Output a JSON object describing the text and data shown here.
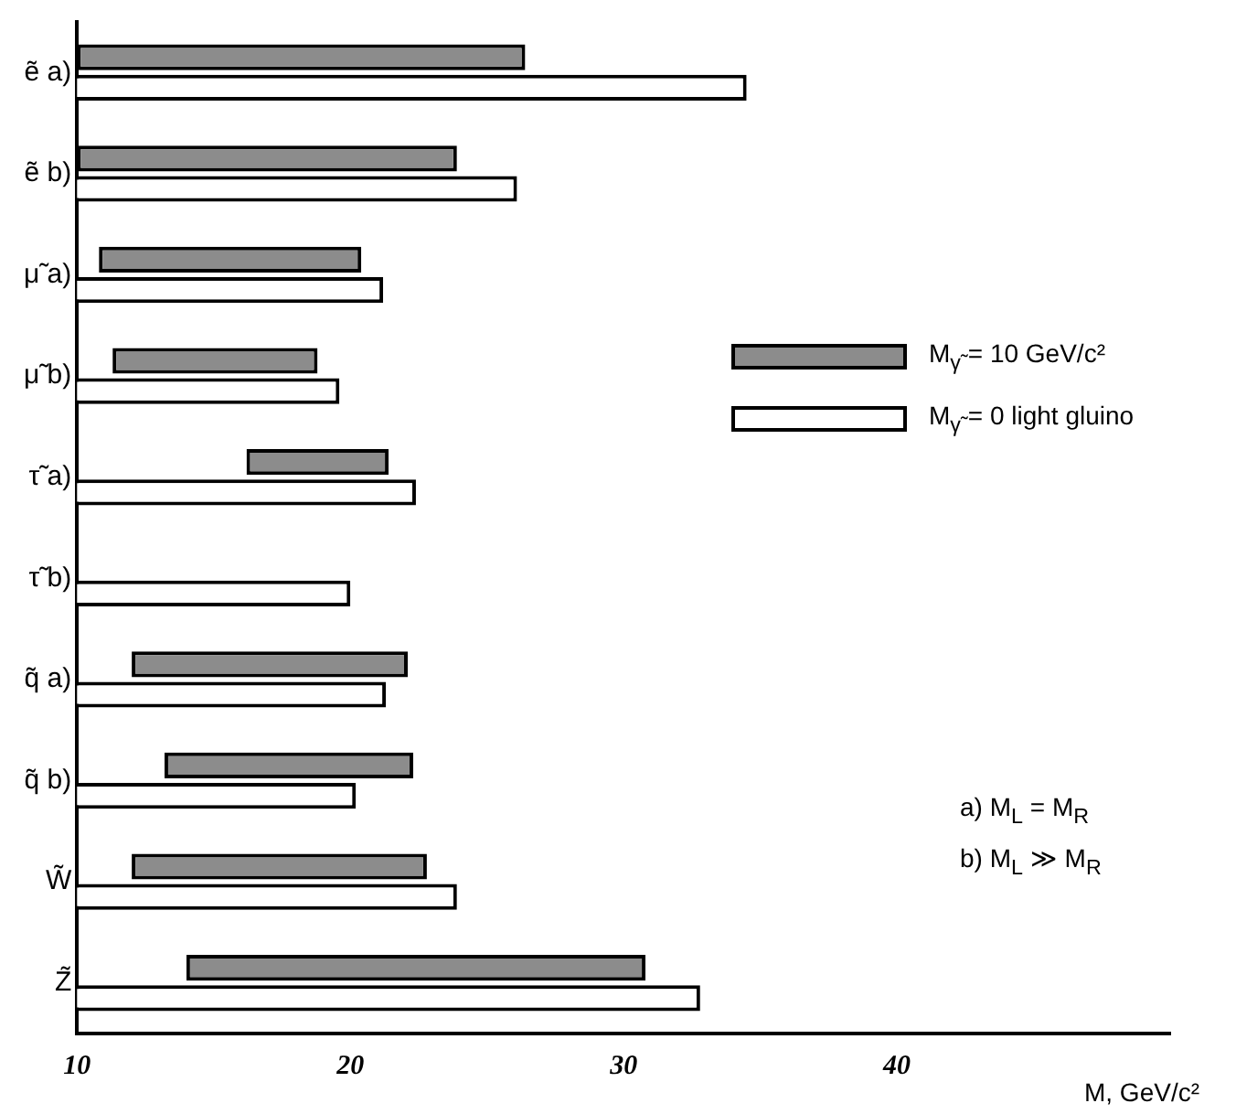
{
  "chart_data": {
    "type": "bar",
    "orientation": "horizontal",
    "xlabel": "M, GeV/c²",
    "categories": [
      "ẽ a)",
      "ẽ b)",
      "μ̃ a)",
      "μ̃ b)",
      "τ̃ a)",
      "τ̃ b)",
      "q̃ a)",
      "q̃ b)",
      "W̃",
      "Z̃"
    ],
    "series": [
      {
        "name": "M$_{γ̃}$ = 10 GeV/c²",
        "color": "#8c8c8c",
        "base": [
          10,
          10,
          10.8,
          11.3,
          16.2,
          null,
          12.0,
          13.2,
          12.0,
          14.0
        ],
        "values": [
          16.4,
          13.9,
          9.6,
          7.5,
          5.2,
          null,
          10.1,
          9.1,
          10.8,
          16.8
        ]
      },
      {
        "name": "M$_{γ̃}$ = 0 light gluino",
        "color": "#ffffff",
        "values": [
          34.5,
          26.1,
          21.2,
          19.6,
          22.4,
          20.0,
          21.3,
          20.2,
          23.9,
          32.8
        ]
      }
    ],
    "xlim": [
      10,
      50
    ],
    "xticks": [
      10,
      20,
      30,
      40
    ],
    "grid": false,
    "legend": "right",
    "annotations": [
      "a) M$_{L}$ = M$_{R}$",
      "b) M$_{L}$ ≫ M$_{R}$"
    ]
  }
}
